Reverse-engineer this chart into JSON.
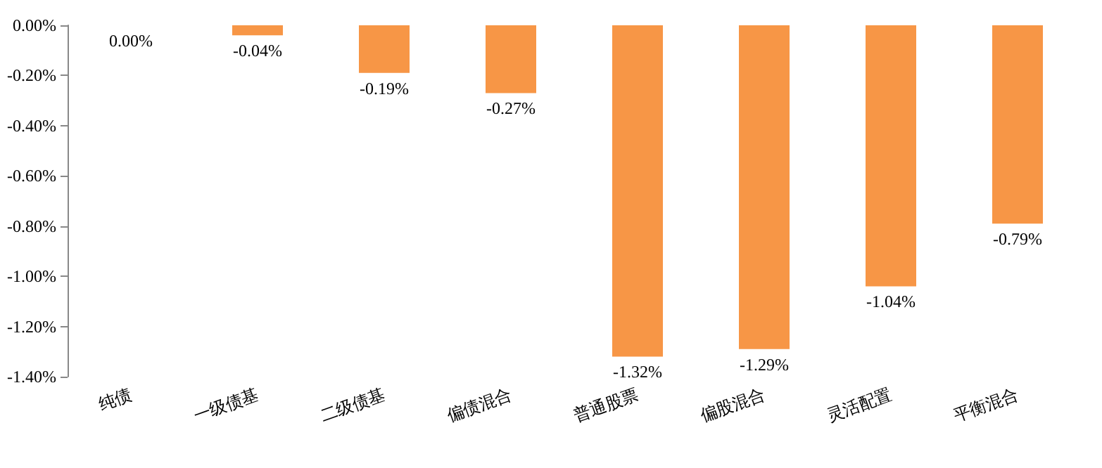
{
  "chart_data": {
    "type": "bar",
    "categories": [
      "纯债",
      "一级债基",
      "二级债基",
      "偏债混合",
      "普通股票",
      "偏股混合",
      "灵活配置",
      "平衡混合"
    ],
    "values": [
      0.0,
      -0.04,
      -0.19,
      -0.27,
      -1.32,
      -1.29,
      -1.04,
      -0.79
    ],
    "value_labels": [
      "0.00%",
      "-0.04%",
      "-0.19%",
      "-0.27%",
      "-1.32%",
      "-1.29%",
      "-1.04%",
      "-0.79%"
    ],
    "color": "#f79646",
    "ylim": [
      -1.4,
      0
    ],
    "yticks": [
      {
        "value": 0,
        "label": "0.00%"
      },
      {
        "value": -0.2,
        "label": "-0.20%"
      },
      {
        "value": -0.4,
        "label": "-0.40%"
      },
      {
        "value": -0.6,
        "label": "-0.60%"
      },
      {
        "value": -0.8,
        "label": "-0.80%"
      },
      {
        "value": -1.0,
        "label": "-1.00%"
      },
      {
        "value": -1.2,
        "label": "-1.20%"
      },
      {
        "value": -1.4,
        "label": "-1.40%"
      }
    ],
    "grid": false
  }
}
